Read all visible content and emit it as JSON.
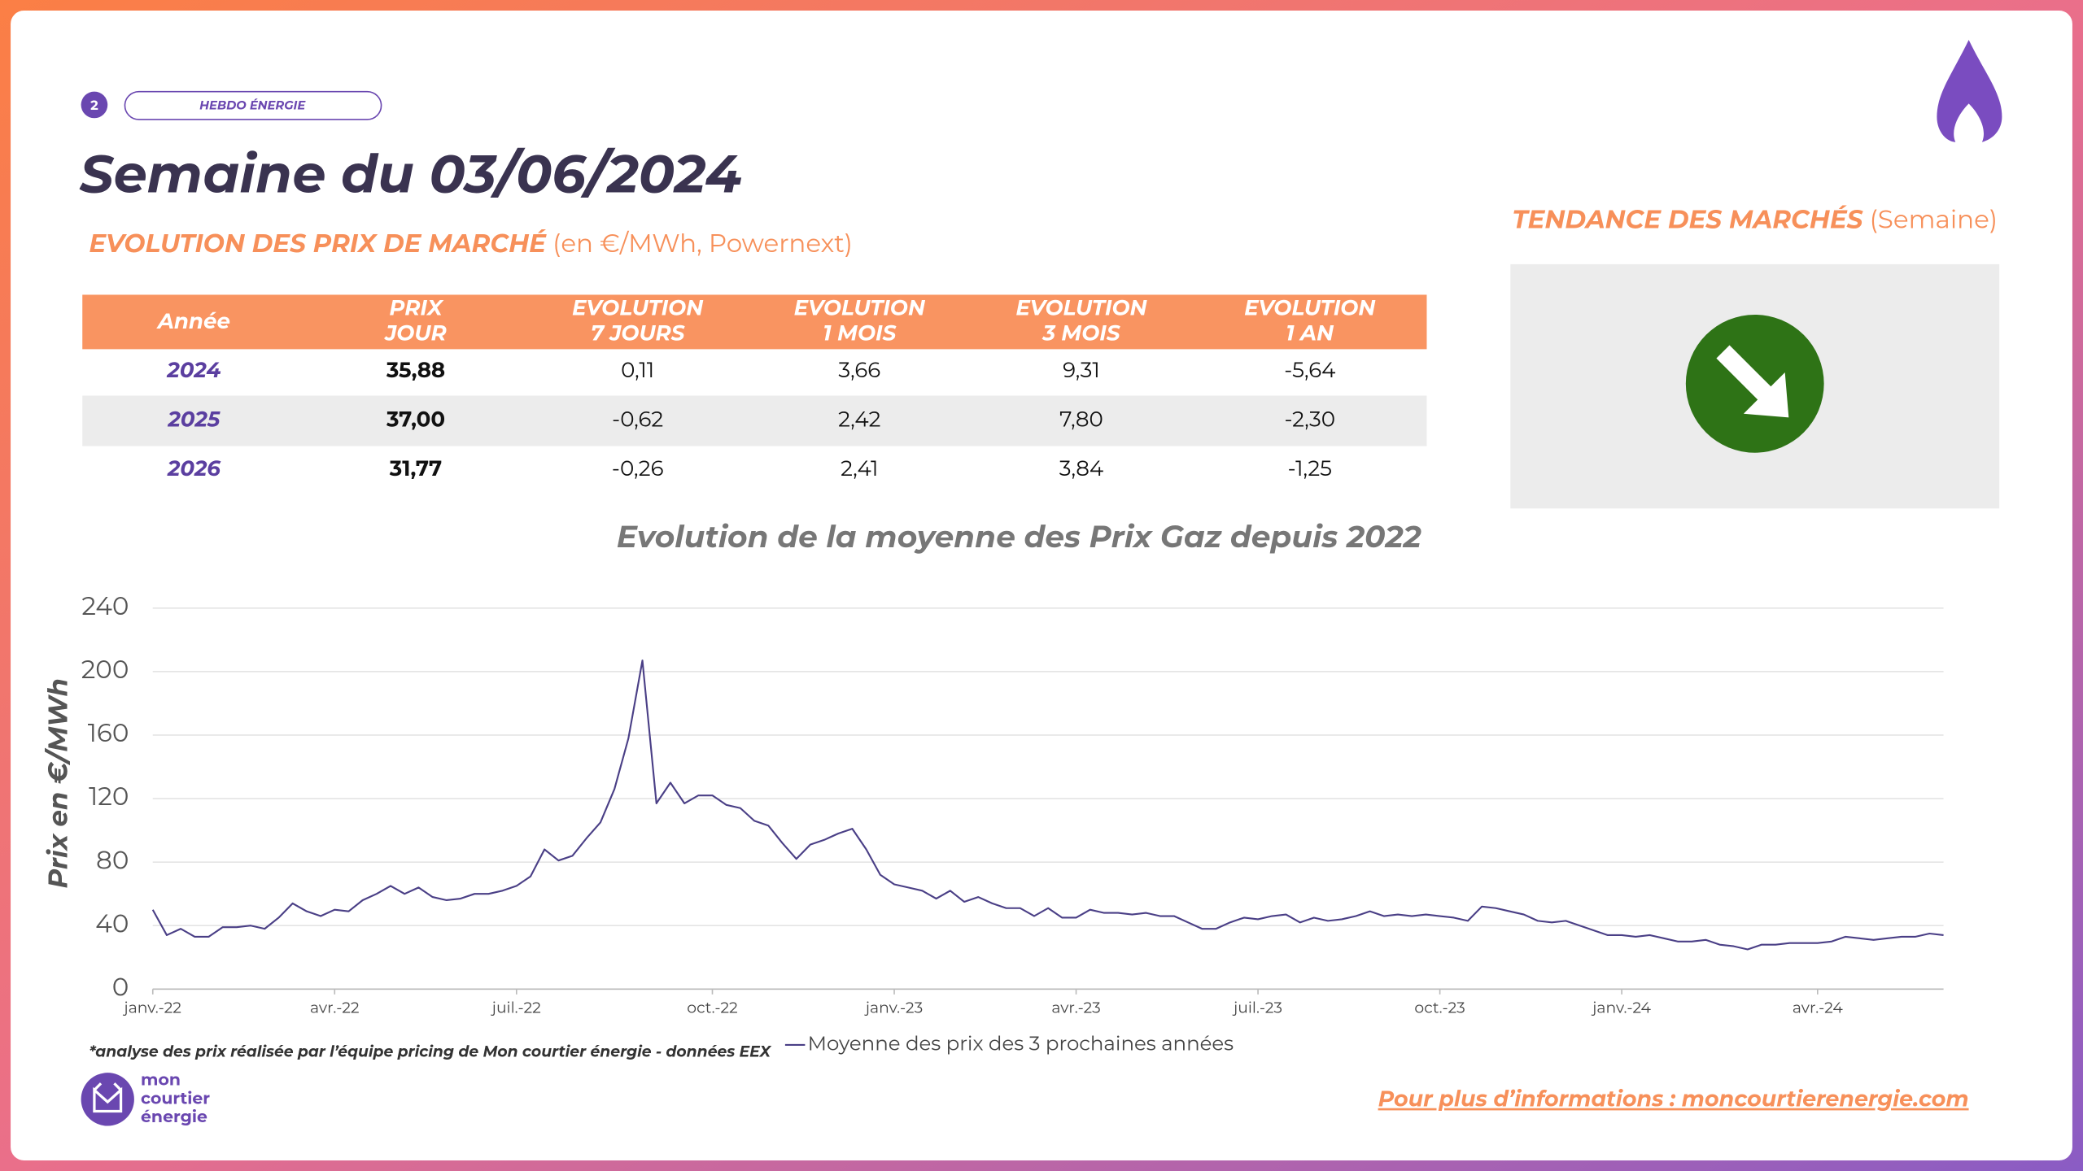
{
  "header": {
    "page_number": "2",
    "tag": "HEBDO ÉNERGIE",
    "title": "Semaine du 03/06/2024",
    "subtitle_bold": "EVOLUTION DES PRIX DE MARCHÉ",
    "subtitle_rest": "(en €/MWh, Powernext)"
  },
  "trend": {
    "title_bold": "TENDANCE DES MARCHÉS",
    "title_rest": "(Semaine)"
  },
  "table": {
    "headers": [
      [
        "Année"
      ],
      [
        "PRIX",
        "JOUR"
      ],
      [
        "EVOLUTION",
        "7 JOURS"
      ],
      [
        "EVOLUTION",
        "1 MOIS"
      ],
      [
        "EVOLUTION",
        "3 MOIS"
      ],
      [
        "EVOLUTION",
        "1 AN"
      ]
    ],
    "rows": [
      [
        "2024",
        "35,88",
        "0,11",
        "3,66",
        "9,31",
        "-5,64"
      ],
      [
        "2025",
        "37,00",
        "-0,62",
        "2,42",
        "7,80",
        "-2,30"
      ],
      [
        "2026",
        "31,77",
        "-0,26",
        "2,41",
        "3,84",
        "-1,25"
      ]
    ]
  },
  "chart_data": {
    "type": "line",
    "title": "Evolution de la moyenne des Prix Gaz depuis 2022",
    "y_label": "Prix en €/MWh",
    "categories": [
      "janv.-22",
      null,
      null,
      null,
      null,
      null,
      null,
      null,
      null,
      null,
      null,
      null,
      null,
      "avr.-22",
      null,
      null,
      null,
      null,
      null,
      null,
      null,
      null,
      null,
      null,
      null,
      null,
      "juil.-22",
      null,
      null,
      null,
      null,
      null,
      null,
      null,
      null,
      null,
      null,
      null,
      null,
      null,
      "oct.-22",
      null,
      null,
      null,
      null,
      null,
      null,
      null,
      null,
      null,
      null,
      null,
      null,
      "janv.-23",
      null,
      null,
      null,
      null,
      null,
      null,
      null,
      null,
      null,
      null,
      null,
      null,
      "avr.-23",
      null,
      null,
      null,
      null,
      null,
      null,
      null,
      null,
      null,
      null,
      null,
      null,
      "juil.-23",
      null,
      null,
      null,
      null,
      null,
      null,
      null,
      null,
      null,
      null,
      null,
      null,
      "oct.-23",
      null,
      null,
      null,
      null,
      null,
      null,
      null,
      null,
      null,
      null,
      null,
      null,
      "janv.-24",
      null,
      null,
      null,
      null,
      null,
      null,
      null,
      null,
      null,
      null,
      null,
      null,
      null,
      "avr.-24",
      null,
      null,
      null,
      null,
      null,
      null,
      null,
      null,
      null
    ],
    "series": [
      {
        "name": "Moyenne des prix des 3 prochaines années",
        "color": "#4a3f86",
        "values": [
          50,
          34,
          38,
          33,
          33,
          39,
          39,
          40,
          38,
          45,
          54,
          49,
          46,
          50,
          49,
          56,
          60,
          65,
          60,
          64,
          58,
          56,
          57,
          60,
          60,
          62,
          65,
          71,
          88,
          81,
          84,
          95,
          105,
          126,
          158,
          207,
          117,
          130,
          117,
          122,
          122,
          116,
          114,
          106,
          103,
          92,
          82,
          91,
          94,
          98,
          101,
          88,
          72,
          66,
          64,
          62,
          57,
          62,
          55,
          58,
          54,
          51,
          51,
          46,
          51,
          45,
          45,
          50,
          48,
          48,
          47,
          48,
          46,
          46,
          42,
          38,
          38,
          42,
          45,
          44,
          46,
          47,
          42,
          45,
          43,
          44,
          46,
          49,
          46,
          47,
          46,
          47,
          46,
          45,
          43,
          52,
          51,
          49,
          47,
          43,
          42,
          43,
          40,
          37,
          34,
          34,
          33,
          34,
          32,
          30,
          30,
          31,
          28,
          27,
          25,
          28,
          28,
          29,
          29,
          29,
          30,
          33,
          32,
          31,
          32,
          33,
          33,
          35,
          34
        ]
      }
    ],
    "ylim": [
      0,
      240
    ],
    "yticks": [
      0,
      40,
      80,
      120,
      160,
      200,
      240
    ],
    "grid": true
  },
  "footer": {
    "note": "*analyse des prix réalisée par l’équipe pricing de Mon courtier énergie -  données EEX",
    "logo": [
      "mon",
      "courtier",
      "énergie"
    ],
    "link": "Pour plus d’informations : moncourtierenergie.com"
  }
}
